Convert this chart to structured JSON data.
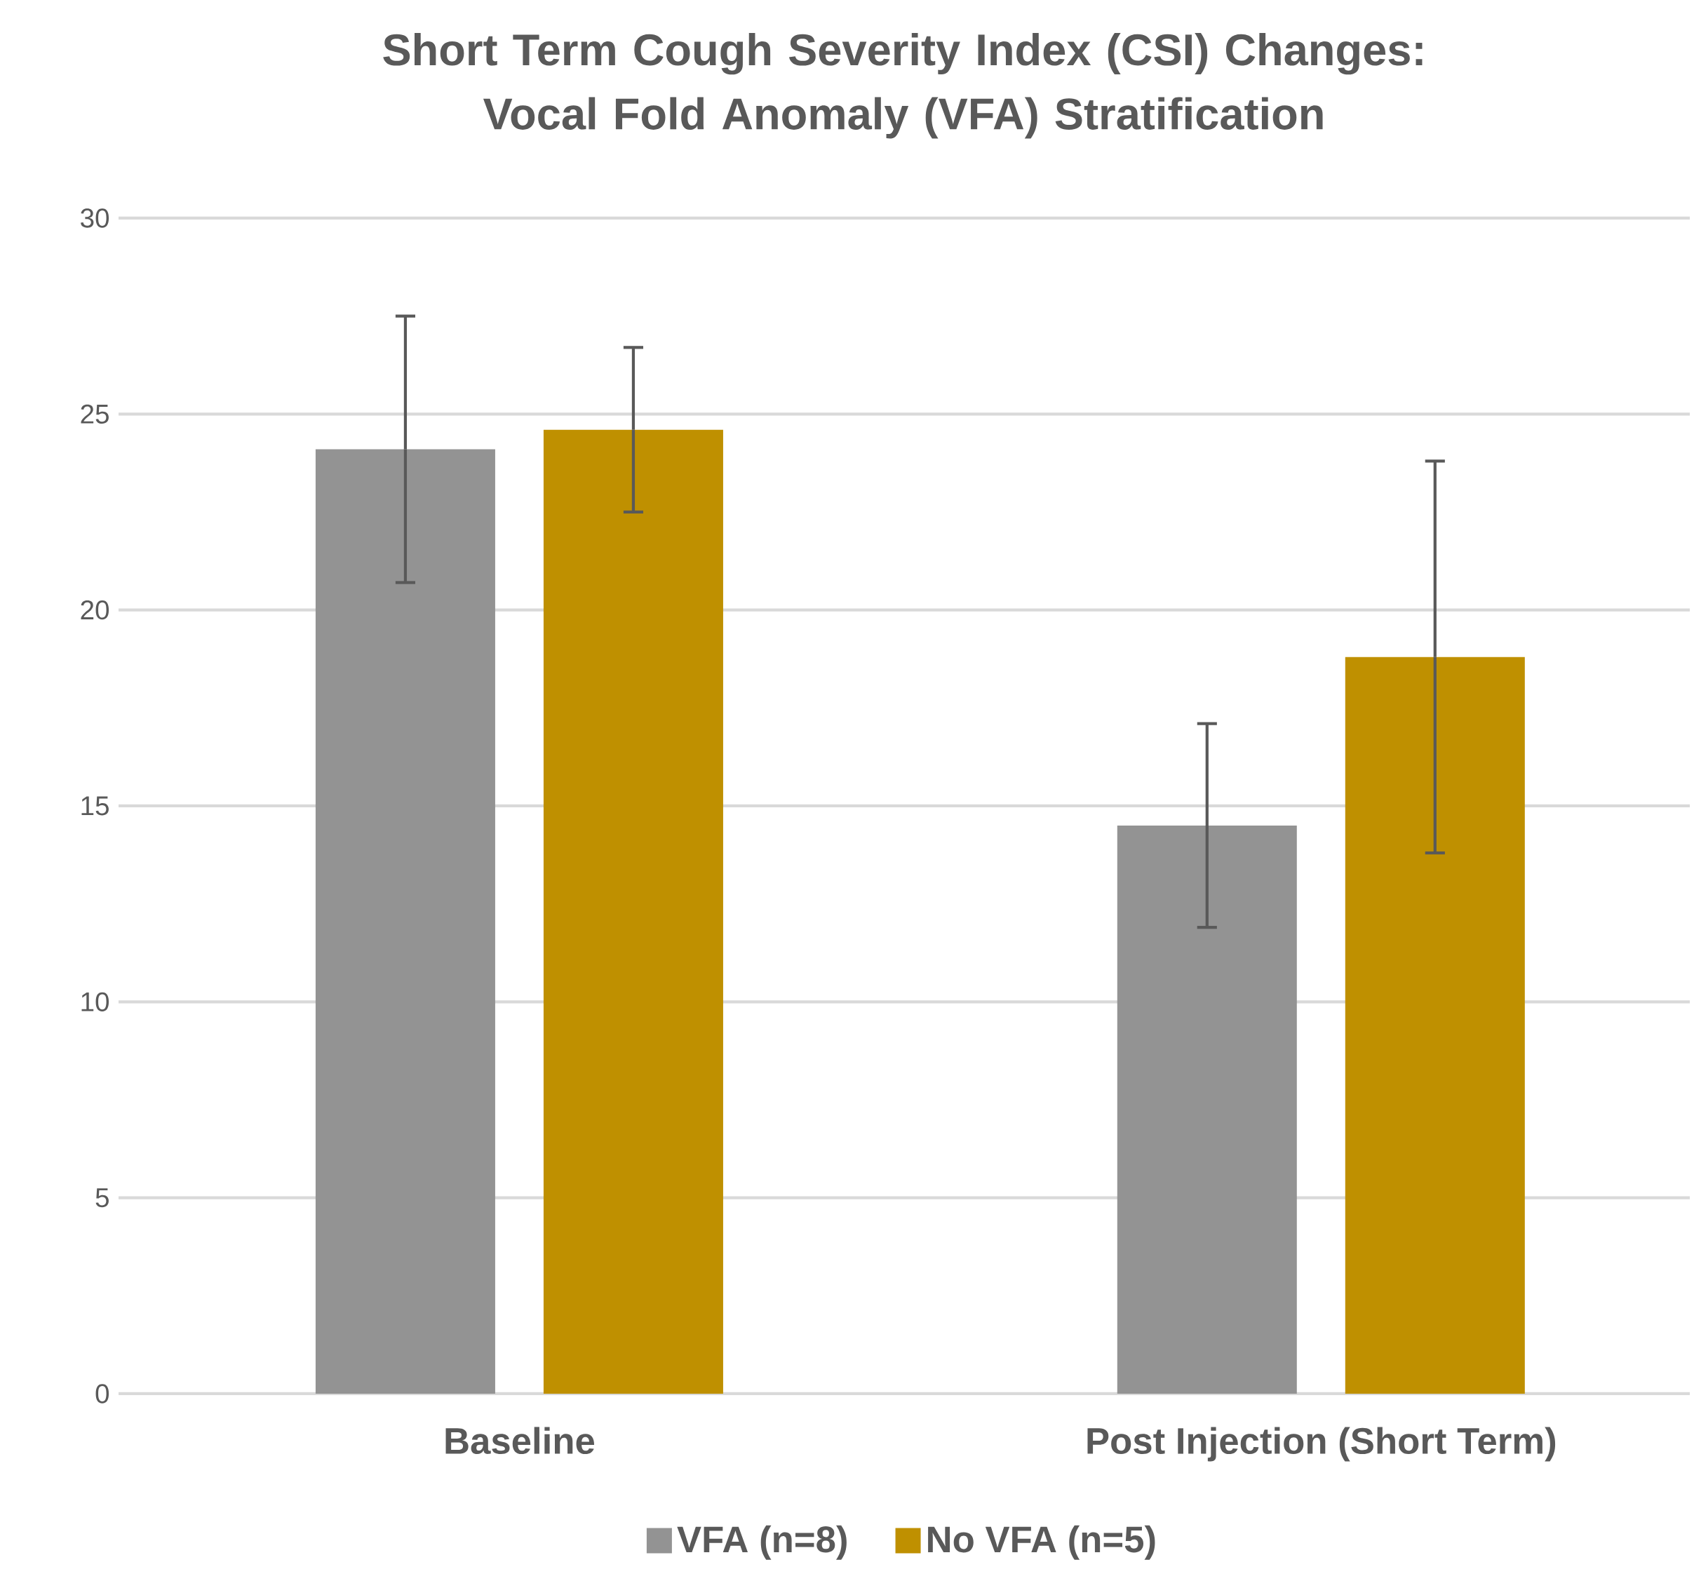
{
  "chart_data": {
    "type": "bar",
    "title": "Short Term Cough Severity Index (CSI) Changes: Vocal Fold Anomaly (VFA) Stratification",
    "categories": [
      "Baseline",
      "Post Injection (Short Term)"
    ],
    "series": [
      {
        "name": "VFA (n=8)",
        "color": "#939393",
        "values": [
          24.1,
          14.5
        ],
        "errors": [
          3.4,
          2.6
        ]
      },
      {
        "name": "No VFA (n=5)",
        "color": "#bf9000",
        "values": [
          24.6,
          18.8
        ],
        "errors": [
          2.1,
          5.0
        ]
      }
    ],
    "ylim": [
      0,
      30
    ],
    "yticks": [
      0,
      5,
      10,
      15,
      20,
      25,
      30
    ],
    "grid": "y",
    "legend": "bottom"
  }
}
